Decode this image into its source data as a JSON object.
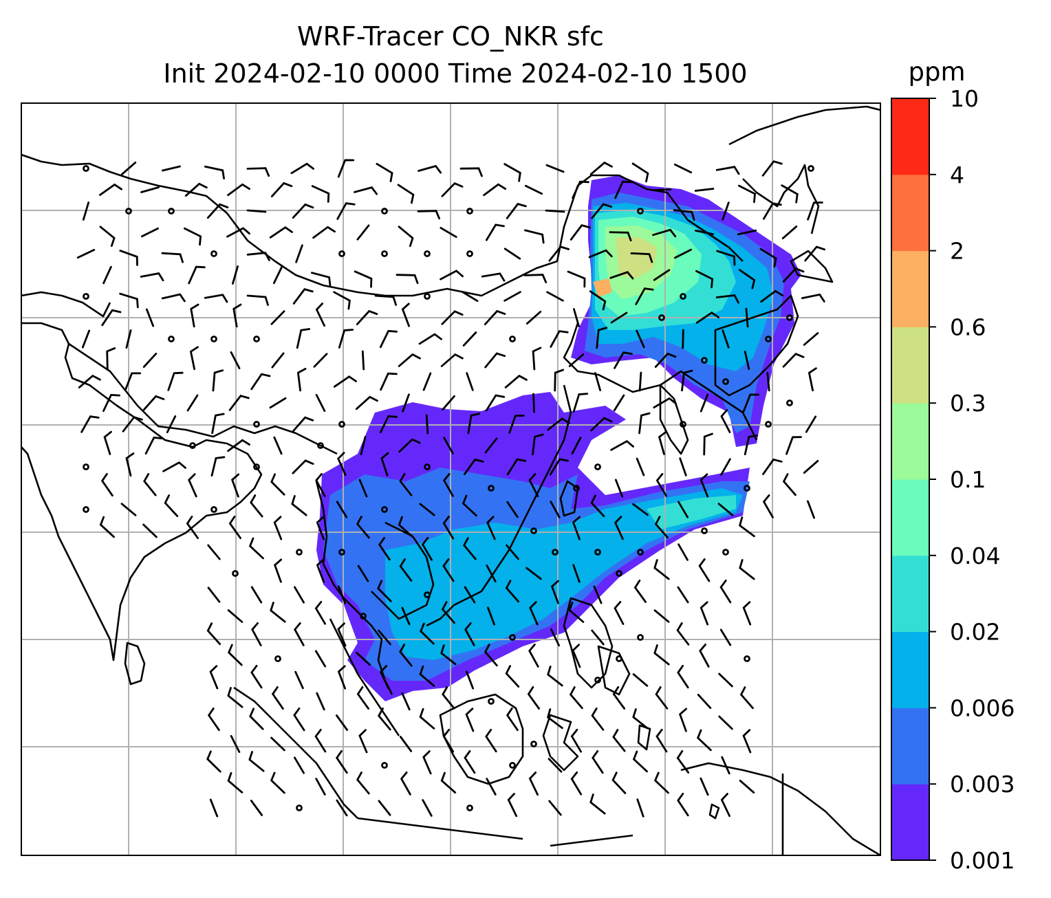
{
  "title": {
    "line1": "WRF-Tracer CO_NKR sfc",
    "line2": "Init 2024-02-10 0000 Time 2024-02-10 1500"
  },
  "colorbar": {
    "unit": "ppm",
    "levels": [
      "0.001",
      "0.003",
      "0.006",
      "0.02",
      "0.04",
      "0.1",
      "0.3",
      "0.6",
      "2",
      "4",
      "10"
    ],
    "colors": [
      "#6429fa",
      "#3373f3",
      "#04b1ea",
      "#33dfd5",
      "#6afcbc",
      "#9cfa9a",
      "#cde182",
      "#feb062",
      "#fe703c",
      "#fe2a17"
    ]
  },
  "map": {
    "gridlines": true,
    "tracer_field": "CO_NKR",
    "wind_barbs": true,
    "coastlines_color": "#000000",
    "gridline_color": "#b0b0b0"
  }
}
